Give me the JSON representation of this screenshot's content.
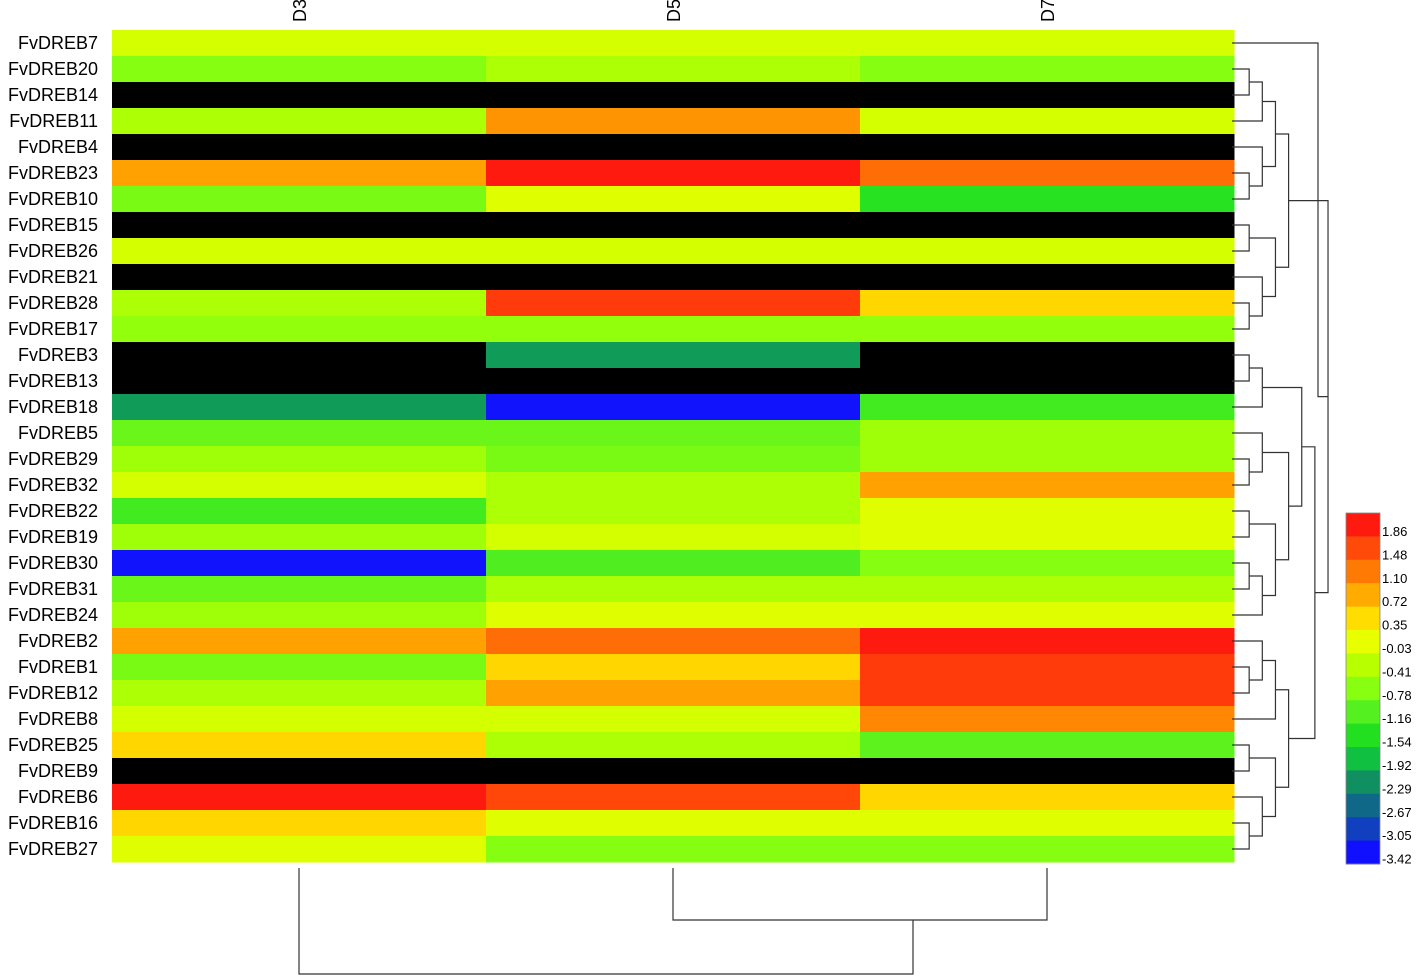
{
  "chart_data": {
    "type": "heatmap",
    "columns": [
      "D3",
      "D5",
      "D7"
    ],
    "rows": [
      "FvDREB7",
      "FvDREB20",
      "FvDREB14",
      "FvDREB11",
      "FvDREB4",
      "FvDREB23",
      "FvDREB10",
      "FvDREB15",
      "FvDREB26",
      "FvDREB21",
      "FvDREB28",
      "FvDREB17",
      "FvDREB3",
      "FvDREB13",
      "FvDREB18",
      "FvDREB5",
      "FvDREB29",
      "FvDREB32",
      "FvDREB22",
      "FvDREB19",
      "FvDREB30",
      "FvDREB31",
      "FvDREB24",
      "FvDREB2",
      "FvDREB1",
      "FvDREB12",
      "FvDREB8",
      "FvDREB25",
      "FvDREB9",
      "FvDREB6",
      "FvDREB16",
      "FvDREB27"
    ],
    "values": [
      [
        -0.2,
        -0.2,
        -0.2
      ],
      [
        -0.8,
        -0.5,
        -0.8
      ],
      [
        null,
        null,
        null
      ],
      [
        -0.5,
        0.9,
        -0.2
      ],
      [
        null,
        null,
        null
      ],
      [
        0.8,
        1.9,
        1.2
      ],
      [
        -0.9,
        -0.1,
        -1.5
      ],
      [
        null,
        null,
        null
      ],
      [
        -0.2,
        -0.2,
        -0.2
      ],
      [
        null,
        null,
        null
      ],
      [
        -0.5,
        1.6,
        0.4
      ],
      [
        -0.7,
        -0.7,
        -0.7
      ],
      [
        null,
        -2.2,
        null
      ],
      [
        null,
        null,
        null
      ],
      [
        -2.2,
        -3.4,
        -1.3
      ],
      [
        -1.0,
        -1.0,
        -0.6
      ],
      [
        -0.6,
        -0.9,
        -0.6
      ],
      [
        -0.2,
        -0.5,
        0.8
      ],
      [
        -1.3,
        -0.5,
        -0.1
      ],
      [
        -0.6,
        -0.2,
        -0.1
      ],
      [
        -3.4,
        -1.2,
        -0.8
      ],
      [
        -1.0,
        -0.5,
        -0.5
      ],
      [
        -0.6,
        -0.1,
        -0.1
      ],
      [
        0.8,
        1.2,
        1.9
      ],
      [
        -0.9,
        0.4,
        1.6
      ],
      [
        -0.5,
        0.8,
        1.6
      ],
      [
        -0.2,
        -0.2,
        1.0
      ],
      [
        0.4,
        -0.5,
        -1.1
      ],
      [
        null,
        null,
        null
      ],
      [
        1.9,
        1.5,
        0.4
      ],
      [
        0.4,
        -0.1,
        -0.1
      ],
      [
        -0.1,
        -0.8,
        -0.8
      ]
    ],
    "missing_color": "#000000",
    "legend": {
      "position": "right",
      "ticks": [
        "1.86",
        "1.48",
        "1.10",
        "0.72",
        "0.35",
        "-0.03",
        "-0.41",
        "-0.78",
        "-1.16",
        "-1.54",
        "-1.92",
        "-2.29",
        "-2.67",
        "-3.05",
        "-3.42"
      ],
      "colors": [
        "#ff1a10",
        "#ff4a0a",
        "#ff7a05",
        "#ffab00",
        "#ffdd00",
        "#e8ff00",
        "#b8ff00",
        "#88ff10",
        "#55f020",
        "#22e020",
        "#10c040",
        "#109060",
        "#106888",
        "#1040c0",
        "#1010ff"
      ]
    },
    "dendrogram_rows": true,
    "dendrogram_columns": true
  }
}
